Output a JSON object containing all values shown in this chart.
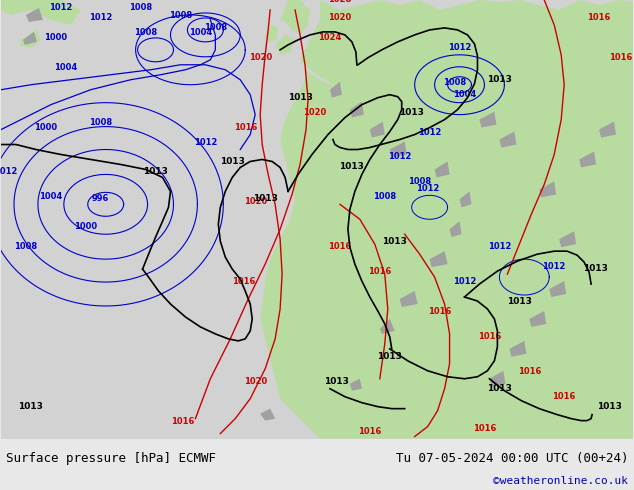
{
  "title_left": "Surface pressure [hPa] ECMWF",
  "title_right": "Tu 07-05-2024 00:00 UTC (00+24)",
  "credit": "©weatheronline.co.uk",
  "ocean_color": "#d2d2d2",
  "land_green": "#b8dca0",
  "land_gray": "#a0a0a0",
  "blue": "#0000cc",
  "red": "#cc0000",
  "black": "#000000",
  "footer_bg": "#e8e8e8",
  "footer_text": "#000000",
  "credit_color": "#0000bb",
  "fig_width": 6.34,
  "fig_height": 4.9,
  "dpi": 100
}
